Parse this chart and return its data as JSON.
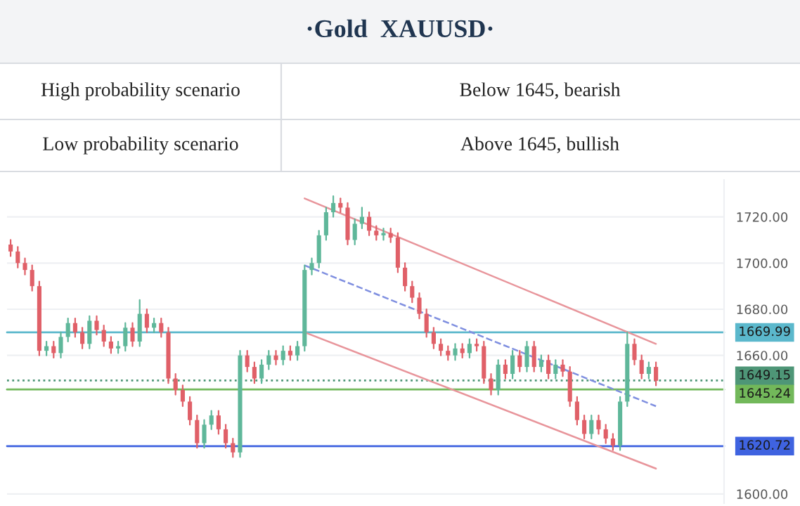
{
  "chart_data": {
    "type": "candlestick",
    "title": "·Gold  XAUUSD·",
    "annotations": [
      "High probability scenario",
      "Below 1645, bearish",
      "Low probability scenario",
      "Above 1645, bullish"
    ],
    "categories": [
      null,
      null,
      null,
      null,
      null,
      null,
      null,
      null,
      null,
      null,
      null,
      null,
      null,
      null,
      null,
      null,
      null,
      null,
      null,
      null,
      null,
      null,
      null,
      null,
      null,
      null,
      null,
      null,
      null,
      null,
      null,
      null,
      null,
      null,
      null,
      null,
      null,
      null,
      null,
      null,
      null,
      null,
      null,
      null,
      null,
      null,
      null,
      null,
      null,
      null,
      null,
      null,
      null,
      null,
      null,
      null,
      null,
      null,
      null,
      null,
      null,
      null,
      null,
      null,
      null,
      null,
      null,
      null,
      null,
      null,
      null,
      null,
      null,
      null,
      null,
      null,
      null,
      null,
      null,
      null,
      null,
      null,
      null,
      null,
      null,
      null,
      null,
      null,
      null,
      null,
      null,
      null,
      null,
      null,
      null,
      null,
      null,
      null,
      null,
      null
    ],
    "ohlc": [
      [
        1708,
        1710,
        1703,
        1705
      ],
      [
        1705,
        1707,
        1698,
        1700
      ],
      [
        1700,
        1702,
        1695,
        1697
      ],
      [
        1697,
        1699,
        1688,
        1690
      ],
      [
        1690,
        1692,
        1660,
        1662
      ],
      [
        1662,
        1666,
        1660,
        1664
      ],
      [
        1664,
        1666,
        1659,
        1661
      ],
      [
        1661,
        1670,
        1659,
        1668
      ],
      [
        1668,
        1676,
        1666,
        1674
      ],
      [
        1674,
        1676,
        1668,
        1670
      ],
      [
        1670,
        1672,
        1663,
        1665
      ],
      [
        1665,
        1677,
        1663,
        1675
      ],
      [
        1675,
        1677,
        1669,
        1671
      ],
      [
        1671,
        1673,
        1664,
        1666
      ],
      [
        1666,
        1668,
        1661,
        1663
      ],
      [
        1663,
        1666,
        1661,
        1664
      ],
      [
        1664,
        1674,
        1662,
        1672
      ],
      [
        1672,
        1674,
        1664,
        1666
      ],
      [
        1666,
        1684,
        1664,
        1678
      ],
      [
        1678,
        1680,
        1670,
        1672
      ],
      [
        1672,
        1676,
        1670,
        1674
      ],
      [
        1674,
        1676,
        1668,
        1670
      ],
      [
        1670,
        1672,
        1648,
        1650
      ],
      [
        1650,
        1652,
        1643,
        1645
      ],
      [
        1645,
        1647,
        1638,
        1640
      ],
      [
        1640,
        1642,
        1630,
        1632
      ],
      [
        1632,
        1634,
        1620,
        1622
      ],
      [
        1622,
        1632,
        1620,
        1630
      ],
      [
        1630,
        1636,
        1628,
        1634
      ],
      [
        1634,
        1636,
        1626,
        1628
      ],
      [
        1628,
        1630,
        1620,
        1622
      ],
      [
        1622,
        1624,
        1616,
        1618
      ],
      [
        1618,
        1662,
        1616,
        1660
      ],
      [
        1660,
        1662,
        1653,
        1655
      ],
      [
        1655,
        1657,
        1648,
        1650
      ],
      [
        1650,
        1658,
        1648,
        1656
      ],
      [
        1656,
        1662,
        1654,
        1660
      ],
      [
        1660,
        1662,
        1656,
        1658
      ],
      [
        1658,
        1664,
        1656,
        1662
      ],
      [
        1662,
        1664,
        1658,
        1660
      ],
      [
        1660,
        1666,
        1658,
        1664
      ],
      [
        1664,
        1699,
        1662,
        1697
      ],
      [
        1697,
        1702,
        1695,
        1700
      ],
      [
        1700,
        1714,
        1698,
        1712
      ],
      [
        1712,
        1724,
        1710,
        1722
      ],
      [
        1722,
        1729,
        1720,
        1726
      ],
      [
        1726,
        1728,
        1722,
        1724
      ],
      [
        1724,
        1726,
        1708,
        1710
      ],
      [
        1710,
        1719,
        1708,
        1717
      ],
      [
        1717,
        1724,
        1715,
        1720
      ],
      [
        1720,
        1722,
        1712,
        1714
      ],
      [
        1714,
        1716,
        1710,
        1712
      ],
      [
        1712,
        1715,
        1710,
        1713
      ],
      [
        1713,
        1715,
        1709,
        1711
      ],
      [
        1711,
        1713,
        1696,
        1698
      ],
      [
        1698,
        1700,
        1688,
        1690
      ],
      [
        1690,
        1692,
        1683,
        1685
      ],
      [
        1685,
        1687,
        1676,
        1678
      ],
      [
        1678,
        1680,
        1668,
        1670
      ],
      [
        1670,
        1672,
        1663,
        1665
      ],
      [
        1665,
        1667,
        1660,
        1662
      ],
      [
        1662,
        1664,
        1658,
        1660
      ],
      [
        1660,
        1665,
        1658,
        1663
      ],
      [
        1663,
        1665,
        1659,
        1661
      ],
      [
        1661,
        1667,
        1659,
        1665
      ],
      [
        1665,
        1667,
        1662,
        1664
      ],
      [
        1664,
        1666,
        1648,
        1650
      ],
      [
        1650,
        1652,
        1643,
        1645
      ],
      [
        1645,
        1658,
        1643,
        1656
      ],
      [
        1656,
        1658,
        1650,
        1652
      ],
      [
        1652,
        1662,
        1650,
        1660
      ],
      [
        1660,
        1662,
        1653,
        1655
      ],
      [
        1655,
        1666,
        1653,
        1664
      ],
      [
        1664,
        1666,
        1653,
        1655
      ],
      [
        1655,
        1660,
        1653,
        1658
      ],
      [
        1658,
        1660,
        1650,
        1652
      ],
      [
        1652,
        1658,
        1650,
        1656
      ],
      [
        1656,
        1658,
        1651,
        1653
      ],
      [
        1653,
        1655,
        1638,
        1640
      ],
      [
        1640,
        1642,
        1630,
        1632
      ],
      [
        1632,
        1634,
        1624,
        1626
      ],
      [
        1626,
        1634,
        1624,
        1632
      ],
      [
        1632,
        1634,
        1626,
        1628
      ],
      [
        1628,
        1630,
        1622,
        1624
      ],
      [
        1624,
        1626,
        1619,
        1621
      ],
      [
        1621,
        1642,
        1619,
        1640
      ],
      [
        1640,
        1670,
        1638,
        1665
      ],
      [
        1665,
        1667,
        1656,
        1658
      ],
      [
        1658,
        1660,
        1650,
        1652
      ],
      [
        1652,
        1657,
        1650,
        1655
      ],
      [
        1655,
        1657,
        1647,
        1649
      ],
      null,
      null,
      null,
      null,
      null,
      null,
      null,
      null,
      null
    ],
    "colors": [
      "#e06068",
      "#e06068",
      "#e06068",
      "#e06068",
      "#e06068",
      "#5fb79a",
      "#e06068",
      "#5fb79a",
      "#5fb79a",
      "#e06068",
      "#e06068",
      "#5fb79a",
      "#e06068",
      "#e06068",
      "#e06068",
      "#5fb79a",
      "#5fb79a",
      "#e06068",
      "#5fb79a",
      "#e06068",
      "#5fb79a",
      "#e06068",
      "#e06068",
      "#e06068",
      "#e06068",
      "#e06068",
      "#e06068",
      "#5fb79a",
      "#5fb79a",
      "#e06068",
      "#e06068",
      "#e06068",
      "#5fb79a",
      "#e06068",
      "#e06068",
      "#5fb79a",
      "#5fb79a",
      "#e06068",
      "#5fb79a",
      "#e06068",
      "#5fb79a",
      "#5fb79a",
      "#5fb79a",
      "#5fb79a",
      "#5fb79a",
      "#5fb79a",
      "#e06068",
      "#e06068",
      "#5fb79a",
      "#5fb79a",
      "#e06068",
      "#e06068",
      "#5fb79a",
      "#e06068",
      "#e06068",
      "#e06068",
      "#e06068",
      "#e06068",
      "#e06068",
      "#e06068",
      "#e06068",
      "#e06068",
      "#5fb79a",
      "#e06068",
      "#5fb79a",
      "#e06068",
      "#e06068",
      "#e06068",
      "#5fb79a",
      "#e06068",
      "#5fb79a",
      "#e06068",
      "#5fb79a",
      "#e06068",
      "#5fb79a",
      "#e06068",
      "#5fb79a",
      "#e06068",
      "#e06068",
      "#e06068",
      "#e06068",
      "#5fb79a",
      "#e06068",
      "#e06068",
      "#e06068",
      "#5fb79a",
      "#5fb79a",
      "#e06068",
      "#e06068",
      "#5fb79a",
      "#e06068",
      null,
      null,
      null,
      null,
      null,
      null,
      null,
      null,
      null
    ],
    "series": [
      {
        "type": "line",
        "values": [
          null,
          null,
          null,
          null,
          null,
          null,
          null,
          null,
          null,
          null,
          null,
          null,
          null,
          null,
          null,
          null,
          null,
          null,
          null,
          null,
          null,
          null,
          null,
          null,
          null,
          null,
          null,
          null,
          null,
          null,
          null,
          null,
          null,
          null,
          null,
          null,
          null,
          null,
          null,
          null,
          null,
          1728,
          null,
          null,
          null,
          null,
          null,
          null,
          null,
          null,
          null,
          null,
          null,
          null,
          null,
          null,
          null,
          null,
          null,
          null,
          null,
          null,
          null,
          null,
          null,
          null,
          null,
          null,
          null,
          null,
          null,
          null,
          null,
          null,
          null,
          null,
          null,
          null,
          null,
          null,
          null,
          null,
          null,
          null,
          null,
          null,
          null,
          null,
          null,
          null,
          1665,
          null,
          null,
          null,
          null,
          null,
          null,
          null,
          null,
          null
        ],
        "color": "#e8959b"
      },
      {
        "type": "line",
        "values": [
          null,
          null,
          null,
          null,
          null,
          null,
          null,
          null,
          null,
          null,
          null,
          null,
          null,
          null,
          null,
          null,
          null,
          null,
          null,
          null,
          null,
          null,
          null,
          null,
          null,
          null,
          null,
          null,
          null,
          null,
          null,
          null,
          null,
          null,
          null,
          null,
          null,
          null,
          null,
          null,
          null,
          1670,
          null,
          null,
          null,
          null,
          null,
          null,
          null,
          null,
          null,
          null,
          null,
          null,
          null,
          null,
          null,
          null,
          null,
          null,
          null,
          null,
          null,
          null,
          null,
          null,
          null,
          null,
          null,
          null,
          null,
          null,
          null,
          null,
          null,
          null,
          null,
          null,
          null,
          null,
          null,
          null,
          null,
          null,
          null,
          null,
          null,
          null,
          null,
          null,
          1611,
          null,
          null,
          null,
          null,
          null,
          null,
          null,
          null,
          null
        ],
        "color": "#e8959b"
      },
      {
        "type": "line",
        "values": [
          null,
          null,
          null,
          null,
          null,
          null,
          null,
          null,
          null,
          null,
          null,
          null,
          null,
          null,
          null,
          null,
          null,
          null,
          null,
          null,
          null,
          null,
          null,
          null,
          null,
          null,
          null,
          null,
          null,
          null,
          null,
          null,
          null,
          null,
          null,
          null,
          null,
          null,
          null,
          null,
          null,
          1699,
          null,
          null,
          null,
          null,
          null,
          null,
          null,
          null,
          null,
          null,
          null,
          null,
          null,
          null,
          null,
          null,
          null,
          null,
          null,
          null,
          null,
          null,
          null,
          null,
          null,
          null,
          null,
          null,
          null,
          null,
          null,
          null,
          null,
          null,
          null,
          null,
          null,
          null,
          null,
          null,
          null,
          null,
          null,
          null,
          null,
          null,
          null,
          null,
          1638,
          null,
          null,
          null,
          null,
          null,
          null,
          null,
          null,
          null
        ],
        "color": "#7f8fe0",
        "line_style": "dashed"
      }
    ],
    "ref_lines": [
      {
        "axis": "y",
        "value": 1669.99,
        "label": "1669.99",
        "color": "#5bb8cc"
      },
      {
        "axis": "y",
        "value": 1649.15,
        "label": "1649.15",
        "color": "#4e9677",
        "line_style": "dotted"
      },
      {
        "axis": "y",
        "value": 1645.24,
        "label": "1645.24",
        "color": "#72b85a"
      },
      {
        "axis": "y",
        "value": 1620.72,
        "label": "1620.72",
        "color": "#3f63e0"
      }
    ],
    "ylim": [
      1596,
      1736
    ],
    "yticks": [
      {
        "value": 1600,
        "label": "1600.00"
      },
      {
        "value": 1660,
        "label": "1660.00"
      },
      {
        "value": 1680,
        "label": "1680.00"
      },
      {
        "value": 1700,
        "label": "1700.00"
      },
      {
        "value": 1720,
        "label": "1720.00"
      }
    ],
    "grid": "y",
    "tick_labels": "y"
  }
}
